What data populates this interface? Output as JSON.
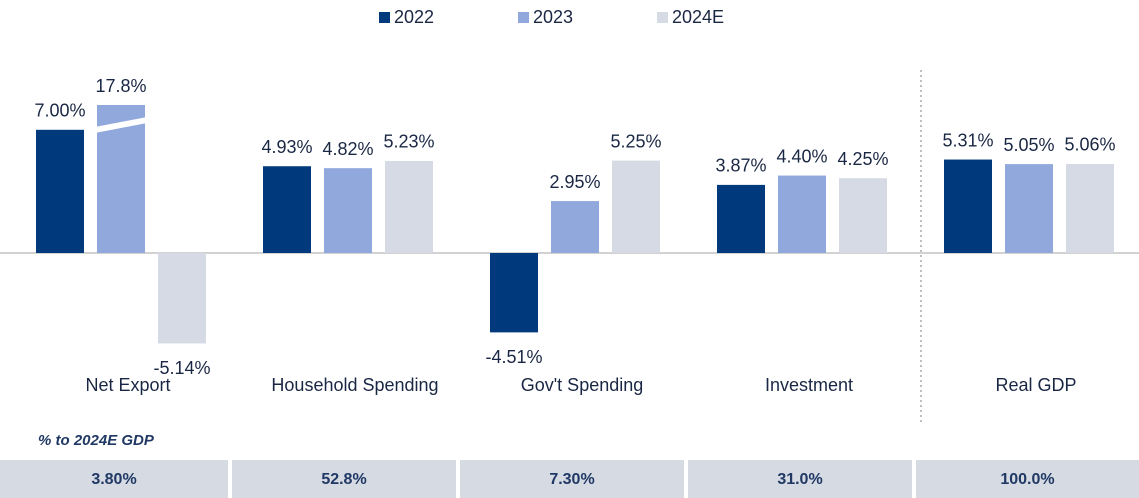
{
  "chart_data": {
    "type": "bar",
    "categories": [
      "Net Export",
      "Household Spending",
      "Gov't Spending",
      "Investment",
      "Real GDP"
    ],
    "series": [
      {
        "name": "2022",
        "color": "#003a7d",
        "values": [
          7.0,
          4.93,
          -4.51,
          3.87,
          5.31
        ],
        "value_labels": [
          "7.00%",
          "4.93%",
          "-4.51%",
          "3.87%",
          "5.31%"
        ]
      },
      {
        "name": "2023",
        "color": "#91a8dc",
        "values": [
          17.8,
          4.82,
          2.95,
          4.4,
          5.05
        ],
        "value_labels": [
          "17.8%",
          "4.82%",
          "2.95%",
          "4.40%",
          "5.05%"
        ]
      },
      {
        "name": "2024E",
        "color": "#d5dae5",
        "values": [
          -5.14,
          5.23,
          5.25,
          4.25,
          5.06
        ],
        "value_labels": [
          "-5.14%",
          "5.23%",
          "5.25%",
          "4.25%",
          "5.06%"
        ]
      }
    ],
    "legend": "top",
    "table": {
      "title": "% to 2024E GDP",
      "values": [
        "3.80%",
        "52.8%",
        "7.30%",
        "31.0%",
        "100.0%"
      ]
    }
  }
}
